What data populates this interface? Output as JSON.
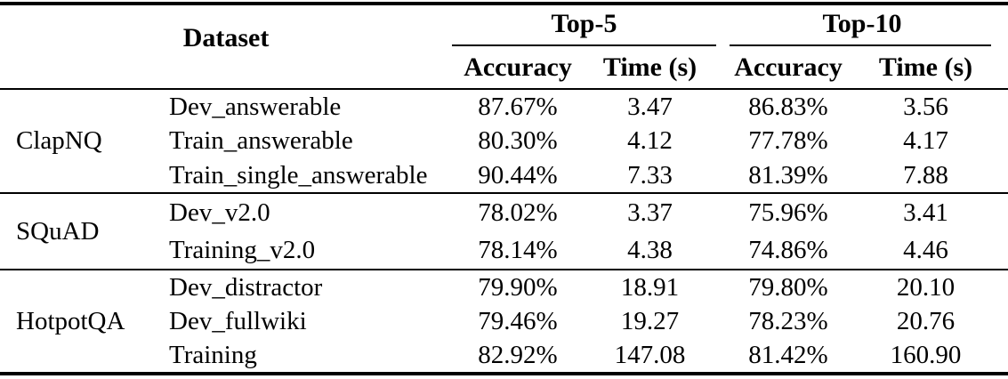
{
  "table": {
    "headers": {
      "dataset_label": "Dataset",
      "group_top5": "Top-5",
      "group_top10": "Top-10",
      "top5_accuracy": "Accuracy",
      "top5_time": "Time (s)",
      "top10_accuracy": "Accuracy",
      "top10_time": "Time (s)"
    },
    "groups": [
      {
        "name": "ClapNQ",
        "rows": [
          {
            "dataset": "Dev_answerable",
            "top5_accuracy": "87.67%",
            "top5_time": "3.47",
            "top10_accuracy": "86.83%",
            "top10_time": "3.56"
          },
          {
            "dataset": "Train_answerable",
            "top5_accuracy": "80.30%",
            "top5_time": "4.12",
            "top10_accuracy": "77.78%",
            "top10_time": "4.17"
          },
          {
            "dataset": "Train_single_answerable",
            "top5_accuracy": "90.44%",
            "top5_time": "7.33",
            "top10_accuracy": "81.39%",
            "top10_time": "7.88"
          }
        ]
      },
      {
        "name": "SQuAD",
        "rows": [
          {
            "dataset": "Dev_v2.0",
            "top5_accuracy": "78.02%",
            "top5_time": "3.37",
            "top10_accuracy": "75.96%",
            "top10_time": "3.41"
          },
          {
            "dataset": "Training_v2.0",
            "top5_accuracy": "78.14%",
            "top5_time": "4.38",
            "top10_accuracy": "74.86%",
            "top10_time": "4.46"
          }
        ]
      },
      {
        "name": "HotpotQA",
        "rows": [
          {
            "dataset": "Dev_distractor",
            "top5_accuracy": "79.90%",
            "top5_time": "18.91",
            "top10_accuracy": "79.80%",
            "top10_time": "20.10"
          },
          {
            "dataset": "Dev_fullwiki",
            "top5_accuracy": "79.46%",
            "top5_time": "19.27",
            "top10_accuracy": "78.23%",
            "top10_time": "20.76"
          },
          {
            "dataset": "Training",
            "top5_accuracy": "82.92%",
            "top5_time": "147.08",
            "top10_accuracy": "81.42%",
            "top10_time": "160.90"
          }
        ]
      }
    ]
  },
  "colors": {
    "text": "#000000",
    "background": "#ffffff",
    "rule": "#000000"
  }
}
